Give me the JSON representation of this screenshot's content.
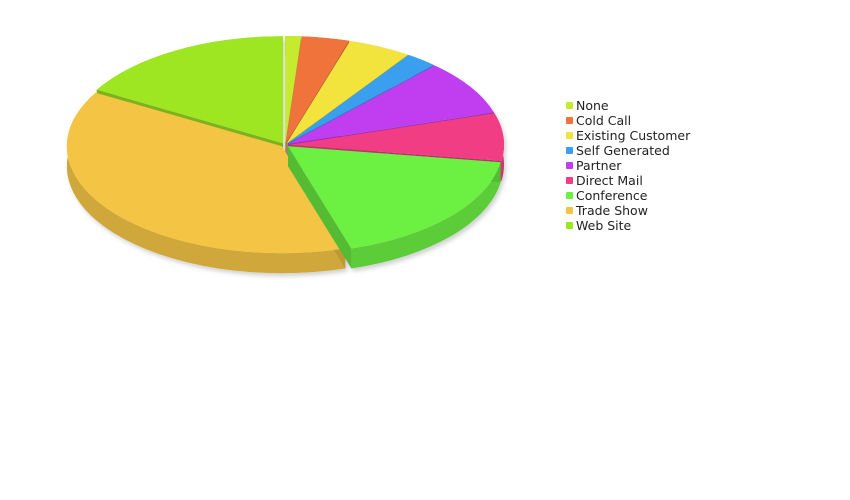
{
  "chart_data": {
    "type": "pie",
    "style": "3d-exploded",
    "title": "",
    "series": [
      {
        "name": "None",
        "value": 1,
        "color": "#c5ea2f"
      },
      {
        "name": "Cold Call",
        "value": 3,
        "color": "#f0733a"
      },
      {
        "name": "Existing Customer",
        "value": 4,
        "color": "#f2e33e"
      },
      {
        "name": "Self Generated",
        "value": 2,
        "color": "#3a9ff0"
      },
      {
        "name": "Partner",
        "value": 7,
        "color": "#c03df0"
      },
      {
        "name": "Direct Mail",
        "value": 6,
        "color": "#f03d84"
      },
      {
        "name": "Conference",
        "value": 15,
        "color": "#6cf042"
      },
      {
        "name": "Trade Show",
        "value": 32,
        "color": "#f4c444"
      },
      {
        "name": "Web Site",
        "value": 14,
        "color": "#9ee623"
      }
    ],
    "legend_position": "right"
  }
}
